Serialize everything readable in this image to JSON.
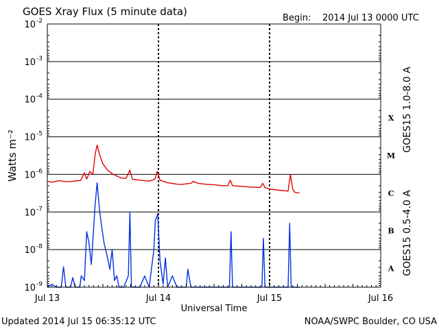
{
  "title": "GOES Xray Flux (5 minute data)",
  "begin_label": "Begin:",
  "begin_value": "2014 Jul 13 0000 UTC",
  "updated": "Updated 2014 Jul 15 06:35:12 UTC",
  "credit": "NOAA/SWPC Boulder, CO USA",
  "colors": {
    "long_channel": "#e00000",
    "short_channel": "#0030e0",
    "axes": "#000000"
  },
  "chart_data": {
    "type": "line",
    "xlabel": "Universal Time",
    "ylabel": "Watts m⁻²",
    "y_scale": "log",
    "ylim": [
      1e-09,
      0.01
    ],
    "xlim": [
      "2014-07-13 00:00",
      "2014-07-16 00:00"
    ],
    "grid": "horizontal at each decade",
    "x_ticks": [
      {
        "x": "2014-07-13",
        "label": "Jul 13"
      },
      {
        "x": "2014-07-14",
        "label": "Jul 14"
      },
      {
        "x": "2014-07-15",
        "label": "Jul 15"
      },
      {
        "x": "2014-07-16",
        "label": "Jul 16"
      }
    ],
    "y_ticks": [
      {
        "exp": -2,
        "label": "10",
        "sup": "-2"
      },
      {
        "exp": -3,
        "label": "10",
        "sup": "-3"
      },
      {
        "exp": -4,
        "label": "10",
        "sup": "-4"
      },
      {
        "exp": -5,
        "label": "10",
        "sup": "-5"
      },
      {
        "exp": -6,
        "label": "10",
        "sup": "-6"
      },
      {
        "exp": -7,
        "label": "10",
        "sup": "-7"
      },
      {
        "exp": -8,
        "label": "10",
        "sup": "-8"
      },
      {
        "exp": -9,
        "label": "10",
        "sup": "-9"
      }
    ],
    "flare_classes": [
      {
        "label": "X",
        "exp": -4
      },
      {
        "label": "M",
        "exp": -5
      },
      {
        "label": "C",
        "exp": -6
      },
      {
        "label": "B",
        "exp": -7
      },
      {
        "label": "A",
        "exp": -8
      }
    ],
    "series": [
      {
        "name": "GOES15 1.0-8.0 A",
        "color": "#e00000",
        "points": [
          [
            "2014-07-13 00:00",
            6.5e-07
          ],
          [
            "2014-07-13 01:12",
            6.2e-07
          ],
          [
            "2014-07-13 02:24",
            6.8e-07
          ],
          [
            "2014-07-13 03:36",
            6.5e-07
          ],
          [
            "2014-07-13 04:48",
            6.4e-07
          ],
          [
            "2014-07-13 06:00",
            6.7e-07
          ],
          [
            "2014-07-13 07:12",
            6.9e-07
          ],
          [
            "2014-07-13 08:00",
            1.1e-06
          ],
          [
            "2014-07-13 08:30",
            7.5e-07
          ],
          [
            "2014-07-13 09:10",
            1.2e-06
          ],
          [
            "2014-07-13 09:50",
            1e-06
          ],
          [
            "2014-07-13 10:20",
            3.5e-06
          ],
          [
            "2014-07-13 10:45",
            6e-06
          ],
          [
            "2014-07-13 11:15",
            3.5e-06
          ],
          [
            "2014-07-13 12:00",
            1.9e-06
          ],
          [
            "2014-07-13 13:00",
            1.3e-06
          ],
          [
            "2014-07-13 14:00",
            1.05e-06
          ],
          [
            "2014-07-13 15:00",
            9e-07
          ],
          [
            "2014-07-13 16:00",
            8e-07
          ],
          [
            "2014-07-13 17:00",
            7.8e-07
          ],
          [
            "2014-07-13 17:50",
            1.3e-06
          ],
          [
            "2014-07-13 18:20",
            7.5e-07
          ],
          [
            "2014-07-13 20:00",
            7e-07
          ],
          [
            "2014-07-13 22:00",
            6.6e-07
          ],
          [
            "2014-07-13 23:15",
            7.5e-07
          ],
          [
            "2014-07-13 23:45",
            1.2e-06
          ],
          [
            "2014-07-14 00:20",
            7e-07
          ],
          [
            "2014-07-14 02:00",
            6e-07
          ],
          [
            "2014-07-14 04:00",
            5.5e-07
          ],
          [
            "2014-07-14 05:00",
            5.4e-07
          ],
          [
            "2014-07-14 06:00",
            5.6e-07
          ],
          [
            "2014-07-14 07:00",
            5.8e-07
          ],
          [
            "2014-07-14 07:30",
            6.5e-07
          ],
          [
            "2014-07-14 08:30",
            5.8e-07
          ],
          [
            "2014-07-14 10:00",
            5.5e-07
          ],
          [
            "2014-07-14 12:00",
            5.3e-07
          ],
          [
            "2014-07-14 14:00",
            5e-07
          ],
          [
            "2014-07-14 15:00",
            5e-07
          ],
          [
            "2014-07-14 15:30",
            7e-07
          ],
          [
            "2014-07-14 16:00",
            5e-07
          ],
          [
            "2014-07-14 18:00",
            4.8e-07
          ],
          [
            "2014-07-14 20:00",
            4.6e-07
          ],
          [
            "2014-07-14 22:00",
            4.5e-07
          ],
          [
            "2014-07-14 22:30",
            5.8e-07
          ],
          [
            "2014-07-14 23:00",
            4.5e-07
          ],
          [
            "2014-07-15 00:00",
            4.1e-07
          ],
          [
            "2014-07-15 02:00",
            3.8e-07
          ],
          [
            "2014-07-15 04:00",
            3.6e-07
          ],
          [
            "2014-07-15 04:30",
            1e-06
          ],
          [
            "2014-07-15 05:00",
            4e-07
          ],
          [
            "2014-07-15 05:30",
            3.3e-07
          ],
          [
            "2014-07-15 06:30",
            3.2e-07
          ]
        ]
      },
      {
        "name": "GOES15 0.5-4.0 A",
        "color": "#0030e0",
        "points": [
          [
            "2014-07-13 00:00",
            1e-09
          ],
          [
            "2014-07-13 01:00",
            1.2e-09
          ],
          [
            "2014-07-13 02:00",
            1e-09
          ],
          [
            "2014-07-13 03:00",
            1e-09
          ],
          [
            "2014-07-13 03:30",
            3.5e-09
          ],
          [
            "2014-07-13 04:00",
            1e-09
          ],
          [
            "2014-07-13 05:00",
            1e-09
          ],
          [
            "2014-07-13 05:30",
            1.8e-09
          ],
          [
            "2014-07-13 06:00",
            1e-09
          ],
          [
            "2014-07-13 07:00",
            1e-09
          ],
          [
            "2014-07-13 07:20",
            2e-09
          ],
          [
            "2014-07-13 08:00",
            1.5e-09
          ],
          [
            "2014-07-13 08:30",
            3e-08
          ],
          [
            "2014-07-13 09:00",
            1.5e-08
          ],
          [
            "2014-07-13 09:30",
            4e-09
          ],
          [
            "2014-07-13 10:00",
            3.5e-08
          ],
          [
            "2014-07-13 10:15",
            1.2e-07
          ],
          [
            "2014-07-13 10:45",
            6e-07
          ],
          [
            "2014-07-13 11:15",
            1.2e-07
          ],
          [
            "2014-07-13 11:45",
            4e-08
          ],
          [
            "2014-07-13 12:15",
            1.5e-08
          ],
          [
            "2014-07-13 13:00",
            6e-09
          ],
          [
            "2014-07-13 13:30",
            3e-09
          ],
          [
            "2014-07-13 14:00",
            1e-08
          ],
          [
            "2014-07-13 14:30",
            1.5e-09
          ],
          [
            "2014-07-13 15:00",
            2e-09
          ],
          [
            "2014-07-13 15:30",
            1e-09
          ],
          [
            "2014-07-13 16:30",
            1e-09
          ],
          [
            "2014-07-13 17:30",
            2e-09
          ],
          [
            "2014-07-13 17:50",
            1e-07
          ],
          [
            "2014-07-13 18:10",
            1e-09
          ],
          [
            "2014-07-13 20:00",
            1e-09
          ],
          [
            "2014-07-13 21:00",
            2e-09
          ],
          [
            "2014-07-13 22:00",
            1e-09
          ],
          [
            "2014-07-13 23:00",
            1e-08
          ],
          [
            "2014-07-13 23:20",
            6e-08
          ],
          [
            "2014-07-13 23:50",
            9e-08
          ],
          [
            "2014-07-14 00:20",
            5e-09
          ],
          [
            "2014-07-14 01:00",
            1.2e-09
          ],
          [
            "2014-07-14 01:30",
            6e-09
          ],
          [
            "2014-07-14 02:00",
            1e-09
          ],
          [
            "2014-07-14 03:00",
            2e-09
          ],
          [
            "2014-07-14 04:00",
            1e-09
          ],
          [
            "2014-07-14 05:00",
            1e-09
          ],
          [
            "2014-07-14 06:00",
            1e-09
          ],
          [
            "2014-07-14 06:20",
            3e-09
          ],
          [
            "2014-07-14 07:00",
            1e-09
          ],
          [
            "2014-07-14 08:00",
            1e-09
          ],
          [
            "2014-07-14 10:00",
            1e-09
          ],
          [
            "2014-07-14 12:00",
            1e-09
          ],
          [
            "2014-07-14 13:00",
            1e-09
          ],
          [
            "2014-07-14 14:00",
            1e-09
          ],
          [
            "2014-07-14 15:20",
            1e-09
          ],
          [
            "2014-07-14 15:40",
            3e-08
          ],
          [
            "2014-07-14 16:00",
            1e-09
          ],
          [
            "2014-07-14 17:00",
            1e-09
          ],
          [
            "2014-07-14 18:00",
            1e-09
          ],
          [
            "2014-07-14 20:00",
            1e-09
          ],
          [
            "2014-07-14 22:20",
            1e-09
          ],
          [
            "2014-07-14 22:40",
            2e-08
          ],
          [
            "2014-07-14 23:00",
            1e-09
          ],
          [
            "2014-07-15 00:00",
            1e-09
          ],
          [
            "2014-07-15 02:00",
            1e-09
          ],
          [
            "2014-07-15 04:00",
            1e-09
          ],
          [
            "2014-07-15 04:20",
            5e-08
          ],
          [
            "2014-07-15 04:40",
            1e-09
          ],
          [
            "2014-07-15 05:00",
            1e-09
          ],
          [
            "2014-07-15 06:30",
            1e-09
          ]
        ]
      }
    ]
  }
}
